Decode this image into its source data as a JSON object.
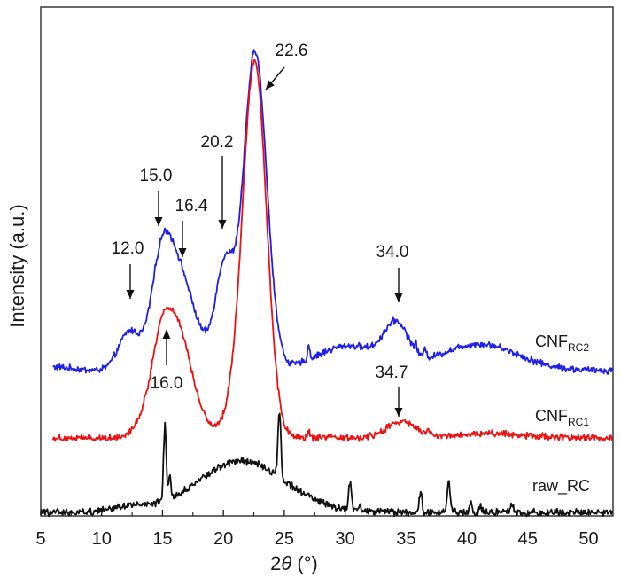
{
  "chart_data": {
    "type": "line",
    "xlabel_prefix": "2",
    "xlabel_symbol": "θ",
    "xlabel_suffix": " (°)",
    "ylabel": "Intensity (a.u.)",
    "xlim": [
      5,
      52
    ],
    "x_ticks": [
      5,
      10,
      15,
      20,
      25,
      30,
      35,
      40,
      45,
      50
    ],
    "y_ticks_shown": false,
    "grid": false,
    "series": [
      {
        "name": "CNF",
        "subscript": "RC2",
        "color": "#1f1fe6",
        "baseline": 418,
        "noise": 3.0,
        "sharp_peaks": [
          {
            "x": 27.0,
            "h": 16,
            "w": 0.1
          },
          {
            "x": 35.8,
            "h": 8,
            "w": 0.1
          },
          {
            "x": 36.6,
            "h": 10,
            "w": 0.1
          }
        ],
        "peaks": [
          {
            "x": 6.0,
            "h": 4,
            "w": 1.5
          },
          {
            "x": 12.3,
            "h": 44,
            "w": 0.9
          },
          {
            "x": 14.9,
            "h": 118,
            "w": 0.85
          },
          {
            "x": 16.4,
            "h": 94,
            "w": 1.0
          },
          {
            "x": 18.0,
            "h": 25,
            "w": 1.0
          },
          {
            "x": 20.1,
            "h": 116,
            "w": 0.75
          },
          {
            "x": 22.6,
            "h": 360,
            "w": 0.95
          },
          {
            "x": 30.3,
            "h": 28,
            "w": 2.6
          },
          {
            "x": 34.2,
            "h": 44,
            "w": 1.0
          },
          {
            "x": 41.0,
            "h": 30,
            "w": 3.2
          }
        ]
      },
      {
        "name": "CNF",
        "subscript": "RC1",
        "color": "#ee1111",
        "baseline": 494,
        "noise": 3.0,
        "sharp_peaks": [
          {
            "x": 27.0,
            "h": 8,
            "w": 0.1
          },
          {
            "x": 36.8,
            "h": 5,
            "w": 0.1
          }
        ],
        "peaks": [
          {
            "x": 15.8,
            "h": 140,
            "w": 1.45
          },
          {
            "x": 14.8,
            "h": 20,
            "w": 0.6
          },
          {
            "x": 22.6,
            "h": 413,
            "w": 0.95
          },
          {
            "x": 21.2,
            "h": 34,
            "w": 1.0
          },
          {
            "x": 34.6,
            "h": 18,
            "w": 1.2
          },
          {
            "x": 42.0,
            "h": 5,
            "w": 3.0
          }
        ]
      },
      {
        "name": "raw_RC",
        "subscript": "",
        "color": "#111111",
        "baseline": 578,
        "noise": 3.2,
        "sharp_peaks": [
          {
            "x": 15.2,
            "h": 84,
            "w": 0.11
          },
          {
            "x": 15.6,
            "h": 26,
            "w": 0.1
          },
          {
            "x": 24.6,
            "h": 74,
            "w": 0.12
          },
          {
            "x": 30.4,
            "h": 30,
            "w": 0.12
          },
          {
            "x": 31.2,
            "h": 10,
            "w": 0.1
          },
          {
            "x": 36.2,
            "h": 20,
            "w": 0.12
          },
          {
            "x": 38.5,
            "h": 34,
            "w": 0.12
          },
          {
            "x": 40.3,
            "h": 12,
            "w": 0.1
          },
          {
            "x": 41.1,
            "h": 8,
            "w": 0.1
          },
          {
            "x": 43.7,
            "h": 9,
            "w": 0.1
          }
        ],
        "peaks": [
          {
            "x": 12.0,
            "h": 6,
            "w": 1.5
          },
          {
            "x": 21.5,
            "h": 58,
            "w": 3.6
          }
        ]
      }
    ],
    "annotations": [
      {
        "label": "12.0",
        "x": 12.0
      },
      {
        "label": "15.0",
        "x": 15.0
      },
      {
        "label": "16.4",
        "x": 16.4
      },
      {
        "label": "20.2",
        "x": 20.2
      },
      {
        "label": "22.6",
        "x": 22.6
      },
      {
        "label": "34.0",
        "x": 34.0
      },
      {
        "label": "16.0",
        "x": 16.0
      },
      {
        "label": "34.7",
        "x": 34.7
      }
    ]
  }
}
